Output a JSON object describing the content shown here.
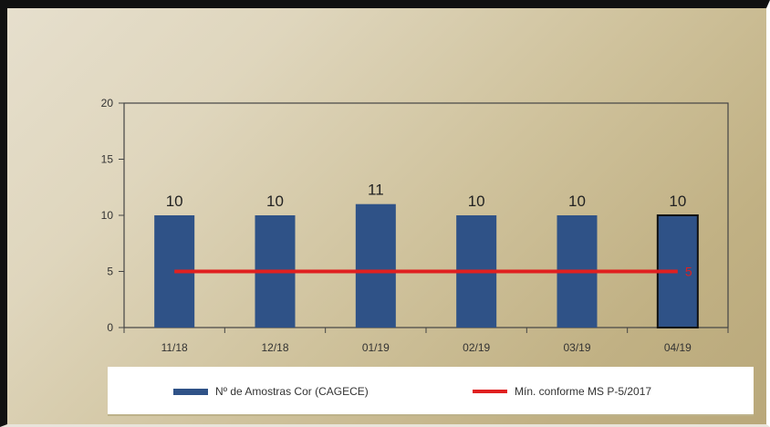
{
  "chart_data": {
    "type": "bar",
    "categories": [
      "11/18",
      "12/18",
      "01/19",
      "02/19",
      "03/19",
      "04/19"
    ],
    "series": [
      {
        "name": "Nº de Amostras Cor (CAGECE)",
        "type": "bar",
        "values": [
          10,
          10,
          11,
          10,
          10,
          10
        ],
        "color": "#2f5287",
        "data_labels": [
          "10",
          "10",
          "11",
          "10",
          "10",
          "10"
        ]
      },
      {
        "name": "Mín. conforme MS  P-5/2017",
        "type": "line",
        "values": [
          5,
          5,
          5,
          5,
          5,
          5
        ],
        "color": "#e02020",
        "end_label": "5"
      }
    ],
    "ylim": [
      0,
      20
    ],
    "yticks": [
      "0",
      "5",
      "10",
      "15",
      "20"
    ],
    "grid": false,
    "legend_position": "bottom"
  }
}
